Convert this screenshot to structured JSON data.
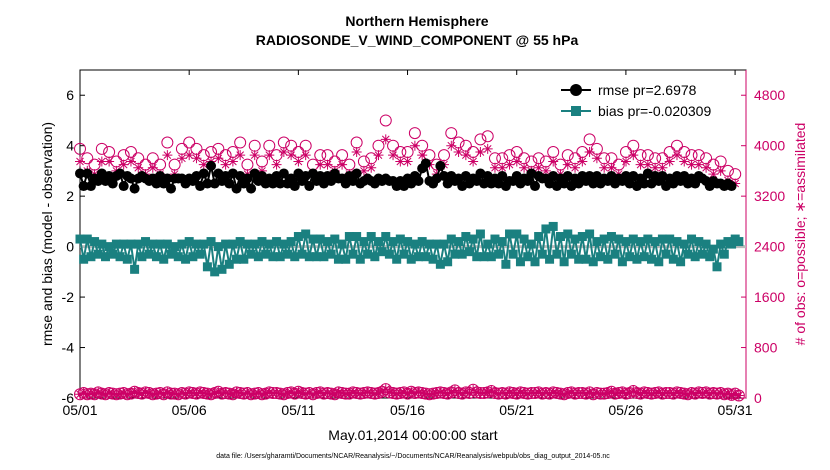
{
  "chart_data": {
    "type": "line",
    "title_line1": "Northern Hemisphere",
    "title_line2": "RADIOSONDE_V_WIND_COMPONENT @ 55 hPa",
    "xlabel": "May.01,2014 00:00:00 start",
    "ylabel_left": "rmse and bias (model - observation)",
    "ylabel_right": "# of obs: o=possible; ∗=assimilated",
    "footer": "data file: /Users/gharamti/Documents/NCAR/Reanalysis/~/Documents/NCAR/Reanalysis/webpub/obs_diag_output_2014-05.nc",
    "xlim": [
      1,
      31.5
    ],
    "ylim_left": [
      -6,
      7
    ],
    "ylim_right": [
      0,
      5200
    ],
    "x_ticks": [
      1,
      6,
      11,
      16,
      21,
      26,
      31
    ],
    "x_tick_labels": [
      "05/01",
      "05/06",
      "05/11",
      "05/16",
      "05/21",
      "05/26",
      "05/31"
    ],
    "y_left_ticks": [
      -6,
      -4,
      -2,
      0,
      2,
      4,
      6
    ],
    "y_left_tick_labels": [
      "-6",
      "-4",
      "-2",
      "0",
      "2",
      "4",
      "6"
    ],
    "y_right_ticks": [
      0,
      800,
      1600,
      2400,
      3200,
      4000,
      4800
    ],
    "y_right_tick_labels": [
      "0",
      "800",
      "1600",
      "2400",
      "3200",
      "4000",
      "4800"
    ],
    "legend": [
      {
        "name": "rmse pr=2.6978",
        "color": "#000000"
      },
      {
        "name": "bias pr=-0.020309",
        "color": "#1a8080"
      }
    ],
    "series": [
      {
        "name": "rmse",
        "color": "#000000",
        "axis": "left",
        "values": [
          2.9,
          2.4,
          2.9,
          2.4,
          2.7,
          2.6,
          2.9,
          2.6,
          2.8,
          2.5,
          2.8,
          2.9,
          2.4,
          2.8,
          2.7,
          2.3,
          2.7,
          2.8,
          2.7,
          2.6,
          2.7,
          2.5,
          2.8,
          2.5,
          2.7,
          2.3,
          2.7,
          2.7,
          2.7,
          2.5,
          2.7,
          2.6,
          2.8,
          2.4,
          2.9,
          2.5,
          3.2,
          2.5,
          2.9,
          2.6,
          2.8,
          2.5,
          2.9,
          2.3,
          2.8,
          2.5,
          2.7,
          2.3,
          2.9,
          2.6,
          2.8,
          2.5,
          2.7,
          2.5,
          2.8,
          2.5,
          2.9,
          2.5,
          2.7,
          2.4,
          2.9,
          2.6,
          2.8,
          2.4,
          2.9,
          2.6,
          2.8,
          2.5,
          2.8,
          2.6,
          2.9,
          2.7,
          2.7,
          2.5,
          2.8,
          2.6,
          2.9,
          2.5,
          2.6,
          2.7,
          2.6,
          2.5,
          2.7,
          2.6,
          2.7,
          2.6,
          2.6,
          2.4,
          2.6,
          2.4,
          2.7,
          2.5,
          2.8,
          2.6,
          3.1,
          3.3,
          2.6,
          2.5,
          2.7,
          3.2,
          2.8,
          2.5,
          2.8,
          2.6,
          2.7,
          2.4,
          2.8,
          2.5,
          2.7,
          2.6,
          2.9,
          2.5,
          2.8,
          2.5,
          2.7,
          2.5,
          2.8,
          2.4,
          2.6,
          2.6,
          2.8,
          2.5,
          2.7,
          2.6,
          2.9,
          2.4,
          2.8,
          2.7,
          2.7,
          2.5,
          2.8,
          2.4,
          2.7,
          2.5,
          2.8,
          2.4,
          2.7,
          2.5,
          2.8,
          2.6,
          2.8,
          2.5,
          2.8,
          2.5,
          2.7,
          2.6,
          2.8,
          2.5,
          2.7,
          2.6,
          2.8,
          2.5,
          2.8,
          2.4,
          2.7,
          2.5,
          2.9,
          2.5,
          2.8,
          2.6,
          2.8,
          2.4,
          2.7,
          2.5,
          2.8,
          2.6,
          2.8,
          2.5,
          2.7,
          2.5,
          2.8,
          2.7,
          2.6,
          2.4,
          2.6,
          2.5,
          2.5,
          2.4,
          2.5,
          2.4
        ]
      },
      {
        "name": "bias",
        "color": "#1a8080",
        "axis": "left",
        "values": [
          0.3,
          -0.5,
          0.3,
          -0.4,
          0.2,
          -0.3,
          0.1,
          -0.4,
          0.0,
          -0.3,
          0.1,
          -0.4,
          0.1,
          -0.5,
          0.1,
          -0.9,
          0.1,
          -0.4,
          0.2,
          -0.3,
          0.1,
          -0.4,
          0.1,
          -0.5,
          0.1,
          -0.3,
          0.0,
          -0.4,
          0.1,
          -0.5,
          0.2,
          -0.4,
          0.1,
          -0.3,
          0.1,
          -0.8,
          0.2,
          -1.0,
          0.0,
          -0.9,
          0.1,
          -0.7,
          0.1,
          -0.5,
          0.2,
          -0.5,
          0.1,
          -0.3,
          0.1,
          -0.4,
          0.2,
          -0.3,
          0.1,
          -0.4,
          0.2,
          -0.4,
          0.1,
          -0.3,
          0.2,
          -0.4,
          0.4,
          -0.3,
          0.5,
          -0.4,
          0.3,
          -0.4,
          0.3,
          -0.4,
          0.2,
          -0.3,
          0.3,
          -0.5,
          0.1,
          -0.5,
          0.4,
          -0.3,
          0.4,
          -0.5,
          0.2,
          -0.3,
          0.4,
          -0.4,
          0.2,
          -0.2,
          0.4,
          -0.3,
          0.2,
          -0.5,
          0.3,
          -0.3,
          0.2,
          -0.5,
          0.1,
          -0.4,
          0.2,
          -0.4,
          0.1,
          -0.5,
          0.1,
          -0.7,
          0.1,
          -0.6,
          0.3,
          -0.3,
          0.2,
          -0.3,
          0.4,
          -0.2,
          0.3,
          -0.4,
          0.5,
          -0.4,
          0.1,
          -0.4,
          0.3,
          -0.3,
          0.2,
          -0.7,
          0.5,
          -0.3,
          0.5,
          -0.6,
          0.3,
          -0.4,
          0.1,
          -0.6,
          0.4,
          -0.3,
          0.7,
          -0.5,
          0.8,
          -0.3,
          0.4,
          -0.6,
          0.5,
          -0.3,
          0.3,
          -0.5,
          0.4,
          -0.5,
          0.5,
          -0.6,
          0.2,
          -0.4,
          0.3,
          -0.5,
          0.4,
          -0.3,
          0.3,
          -0.6,
          0.2,
          -0.4,
          0.3,
          -0.5,
          0.2,
          -0.4,
          0.3,
          -0.5,
          0.2,
          -0.6,
          0.3,
          -0.3,
          0.3,
          -0.5,
          0.2,
          -0.6,
          0.1,
          -0.3,
          0.3,
          -0.4,
          0.2,
          -0.3,
          0.1,
          -0.4,
          -0.1,
          -0.8,
          0.1,
          -0.3,
          0.2,
          0.1,
          0.3,
          0.2
        ]
      },
      {
        "name": "possible",
        "color": "#cc0066",
        "axis": "right",
        "values": [
          3950,
          4100,
          3800,
          3700,
          3700,
          3750,
          3950,
          3850,
          3900,
          3750,
          3750,
          3700,
          3850,
          4000,
          3900,
          3750,
          3800,
          3650,
          3700,
          3700,
          3800,
          3750,
          3700,
          3800,
          4050,
          3800,
          3700,
          4150,
          3950,
          3900,
          4050,
          3850,
          3950,
          3800,
          3850,
          3700,
          3900,
          4000,
          3950,
          3750,
          3850,
          3800,
          3900,
          3700,
          4050,
          3800,
          3700,
          3950,
          4000,
          3900,
          3750,
          3950,
          4000,
          3800,
          3850,
          3900,
          4050,
          3700,
          4000,
          4050,
          3900,
          3950,
          4000,
          4100,
          3700,
          3900,
          3850,
          3800,
          3850,
          3950,
          3750,
          3800,
          3850,
          3650,
          3700,
          3900,
          4050,
          3850,
          3750,
          3900,
          3800,
          3700,
          4000,
          3900,
          4400,
          4250,
          4000,
          3950,
          3900,
          4100,
          3900,
          4450,
          4200,
          4300,
          4000,
          3750,
          3850,
          3700,
          3700,
          3750,
          3850,
          3750,
          4200,
          4100,
          4050,
          4200,
          4000,
          4150,
          3900,
          4150,
          4100,
          4100,
          4150,
          4050,
          3800,
          3850,
          3800,
          3900,
          3850,
          3750,
          3900,
          3700,
          3800,
          3650,
          3750,
          3850,
          3800,
          3700,
          3750,
          3700,
          3900,
          3800,
          3700,
          4100,
          3850,
          3750,
          3800,
          3900,
          3900,
          3800,
          4100,
          3750,
          3950,
          3850,
          3800,
          3850,
          3800,
          3700,
          3700,
          3900,
          3900,
          3950,
          4000,
          3900,
          3850,
          3800,
          3850,
          3950,
          3800,
          3950,
          3800,
          3750,
          3900,
          3700,
          4000,
          3800,
          3900,
          3750,
          3850,
          3750,
          3850,
          3800,
          3800,
          3800,
          3700,
          3800,
          3750,
          3750,
          3600,
          3700,
          3550,
          3600
        ]
      },
      {
        "name": "assimilated",
        "color": "#cc0066",
        "axis": "right",
        "values": [
          3750,
          3900,
          3600,
          3550,
          3550,
          3600,
          3750,
          3700,
          3750,
          3600,
          3600,
          3550,
          3700,
          3800,
          3750,
          3600,
          3650,
          3500,
          3550,
          3550,
          3650,
          3600,
          3550,
          3650,
          3850,
          3650,
          3550,
          3950,
          3800,
          3750,
          3850,
          3700,
          3800,
          3650,
          3700,
          3550,
          3750,
          3800,
          3800,
          3600,
          3700,
          3650,
          3750,
          3550,
          3850,
          3650,
          3550,
          3800,
          3850,
          3750,
          3600,
          3800,
          3850,
          3650,
          3700,
          3750,
          3900,
          3550,
          3850,
          3900,
          3750,
          3800,
          3850,
          3900,
          3550,
          3750,
          3700,
          3650,
          3700,
          3800,
          3600,
          3650,
          3700,
          3500,
          3550,
          3750,
          3900,
          3700,
          3600,
          3750,
          3650,
          3550,
          3850,
          3750,
          4100,
          4000,
          3850,
          3800,
          3750,
          3950,
          3750,
          4150,
          4000,
          4050,
          3850,
          3600,
          3700,
          3550,
          3550,
          3600,
          3700,
          3600,
          4000,
          3900,
          3900,
          4000,
          3850,
          3950,
          3750,
          3950,
          3900,
          3950,
          3950,
          3900,
          3650,
          3700,
          3650,
          3750,
          3700,
          3600,
          3750,
          3550,
          3650,
          3500,
          3600,
          3700,
          3650,
          3550,
          3600,
          3550,
          3750,
          3650,
          3550,
          3900,
          3700,
          3600,
          3650,
          3750,
          3750,
          3650,
          3900,
          3600,
          3800,
          3700,
          3650,
          3700,
          3650,
          3550,
          3550,
          3750,
          3750,
          3800,
          3850,
          3750,
          3700,
          3650,
          3700,
          3800,
          3650,
          3800,
          3650,
          3600,
          3750,
          3550,
          3850,
          3650,
          3750,
          3600,
          3700,
          3600,
          3700,
          3650,
          3650,
          3650,
          3550,
          3650,
          3600,
          3600,
          3450,
          3550,
          3400,
          3450
        ]
      },
      {
        "name": "possible_bottom",
        "color": "#cc0066",
        "axis": "right",
        "values": [
          60,
          80,
          60,
          70,
          60,
          90,
          70,
          60,
          80,
          70,
          60,
          70,
          80,
          60,
          70,
          100,
          80,
          70,
          90,
          80,
          60,
          70,
          80,
          60,
          90,
          70,
          70,
          60,
          80,
          70,
          90,
          80,
          70,
          90,
          80,
          70,
          60,
          80,
          100,
          70,
          80,
          70,
          60,
          90,
          80,
          70,
          80,
          60,
          70,
          80,
          60,
          70,
          90,
          80,
          80,
          70,
          60,
          80,
          90,
          70,
          100,
          80,
          70,
          80,
          60,
          80,
          90,
          70,
          80,
          70,
          60,
          90,
          80,
          70,
          70,
          90,
          80,
          70,
          80,
          90,
          80,
          70,
          80,
          100,
          140,
          90,
          80,
          70,
          80,
          90,
          70,
          100,
          80,
          90,
          80,
          70,
          60,
          70,
          80,
          90,
          80,
          70,
          90,
          120,
          80,
          70,
          90,
          80,
          130,
          90,
          80,
          80,
          90,
          110,
          80,
          70,
          80,
          70,
          90,
          80,
          70,
          90,
          80,
          70,
          80,
          80,
          90,
          70,
          80,
          70,
          90,
          80,
          70,
          60,
          80,
          90,
          70,
          80,
          80,
          70,
          90,
          60,
          80,
          70,
          70,
          80,
          100,
          70,
          80,
          90,
          70,
          80,
          110,
          80,
          70,
          90,
          80,
          70,
          80,
          90,
          70,
          80,
          80,
          70,
          90,
          80,
          70,
          60,
          80,
          70,
          90,
          80,
          90,
          70,
          80,
          70,
          80,
          60,
          70,
          50,
          70,
          40
        ]
      },
      {
        "name": "assimilated_bottom",
        "color": "#cc0066",
        "axis": "right",
        "values": [
          60,
          80,
          60,
          70,
          60,
          90,
          70,
          60,
          80,
          70,
          60,
          70,
          80,
          60,
          70,
          100,
          80,
          70,
          90,
          80,
          60,
          70,
          80,
          60,
          90,
          70,
          70,
          60,
          80,
          70,
          90,
          80,
          70,
          90,
          80,
          70,
          60,
          80,
          100,
          70,
          80,
          70,
          60,
          90,
          80,
          70,
          80,
          60,
          70,
          80,
          60,
          70,
          90,
          80,
          80,
          70,
          60,
          80,
          90,
          70,
          100,
          80,
          70,
          80,
          60,
          80,
          90,
          70,
          80,
          70,
          60,
          90,
          80,
          70,
          70,
          90,
          80,
          70,
          80,
          90,
          80,
          70,
          80,
          100,
          140,
          90,
          80,
          70,
          80,
          90,
          70,
          100,
          80,
          90,
          80,
          70,
          60,
          70,
          80,
          90,
          80,
          70,
          90,
          120,
          80,
          70,
          90,
          80,
          130,
          90,
          80,
          80,
          90,
          110,
          80,
          70,
          80,
          70,
          90,
          80,
          70,
          90,
          80,
          70,
          80,
          80,
          90,
          70,
          80,
          70,
          90,
          80,
          70,
          60,
          80,
          90,
          70,
          80,
          80,
          70,
          90,
          60,
          80,
          70,
          70,
          80,
          100,
          70,
          80,
          90,
          70,
          80,
          110,
          80,
          70,
          90,
          80,
          70,
          80,
          90,
          70,
          80,
          80,
          70,
          90,
          80,
          70,
          60,
          80,
          70,
          90,
          80,
          90,
          70,
          80,
          70,
          80,
          60,
          70,
          50,
          70,
          40
        ]
      }
    ],
    "x_start": 1.0,
    "x_step": 0.1667,
    "zero_line": 0
  }
}
